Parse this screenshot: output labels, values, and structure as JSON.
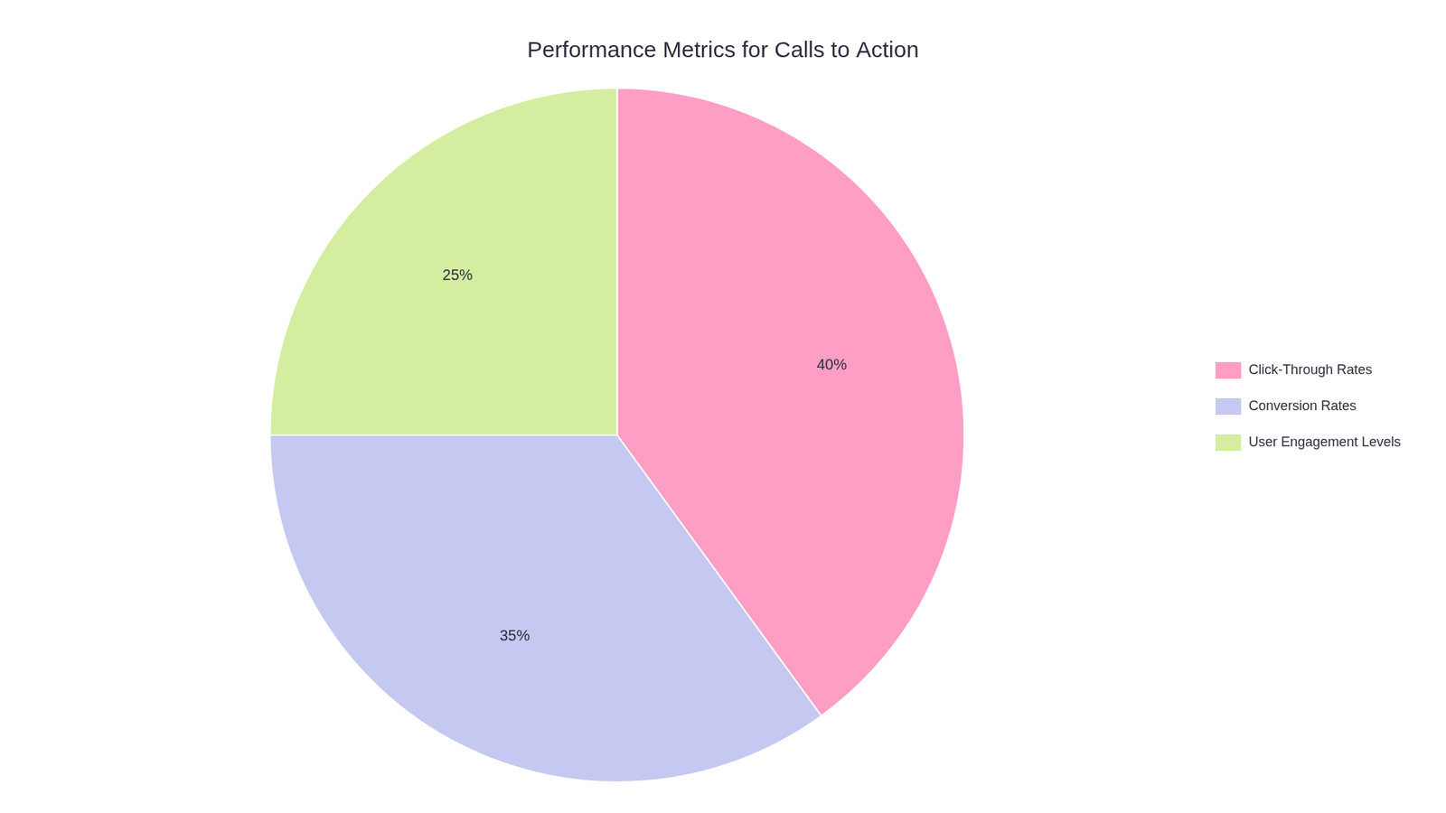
{
  "chart_data": {
    "type": "pie",
    "title": "Performance Metrics for Calls to Action",
    "categories": [
      "Click-Through Rates",
      "Conversion Rates",
      "User Engagement Levels"
    ],
    "values": [
      40,
      35,
      25
    ],
    "value_labels": [
      "40%",
      "35%",
      "25%"
    ],
    "colors": [
      "#FF9EC4",
      "#C5C8F0",
      "#D4EDA0"
    ],
    "data_labels": true,
    "legend": "right"
  }
}
